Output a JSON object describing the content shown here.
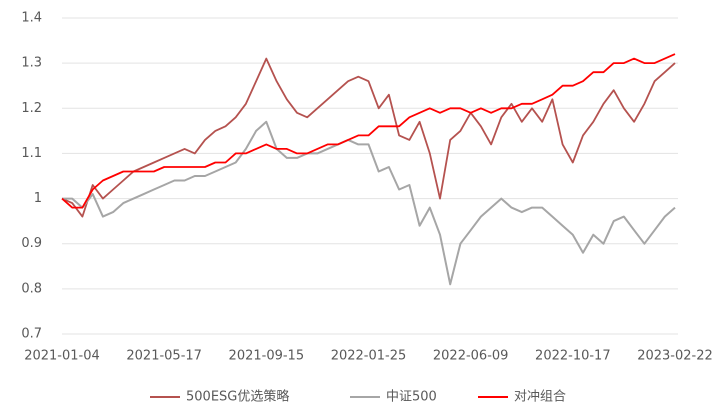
{
  "chart_data": {
    "type": "line",
    "categories": [
      "2021-01-04",
      null,
      null,
      null,
      null,
      null,
      null,
      null,
      null,
      null,
      "2021-05-17",
      null,
      null,
      null,
      null,
      null,
      null,
      null,
      null,
      null,
      "2021-09-15",
      null,
      null,
      null,
      null,
      null,
      null,
      null,
      null,
      null,
      "2022-01-25",
      null,
      null,
      null,
      null,
      null,
      null,
      null,
      null,
      null,
      "2022-06-09",
      null,
      null,
      null,
      null,
      null,
      null,
      null,
      null,
      null,
      "2022-10-17",
      null,
      null,
      null,
      null,
      null,
      null,
      null,
      null,
      null,
      "2023-02-22"
    ],
    "series": [
      {
        "name": "500ESG优选策略",
        "color": "#b5524f",
        "values": [
          1.0,
          0.99,
          0.96,
          1.03,
          1.0,
          1.02,
          1.04,
          1.06,
          1.07,
          1.08,
          1.09,
          1.1,
          1.11,
          1.1,
          1.13,
          1.15,
          1.16,
          1.18,
          1.21,
          1.26,
          1.31,
          1.26,
          1.22,
          1.19,
          1.18,
          1.2,
          1.22,
          1.24,
          1.26,
          1.27,
          1.26,
          1.2,
          1.23,
          1.14,
          1.13,
          1.17,
          1.1,
          1.0,
          1.13,
          1.15,
          1.19,
          1.16,
          1.12,
          1.18,
          1.21,
          1.17,
          1.2,
          1.17,
          1.22,
          1.12,
          1.08,
          1.14,
          1.17,
          1.21,
          1.24,
          1.2,
          1.17,
          1.21,
          1.26,
          1.28,
          1.3
        ]
      },
      {
        "name": "中证500",
        "color": "#a6a6a6",
        "values": [
          1.0,
          1.0,
          0.98,
          1.01,
          0.96,
          0.97,
          0.99,
          1.0,
          1.01,
          1.02,
          1.03,
          1.04,
          1.04,
          1.05,
          1.05,
          1.06,
          1.07,
          1.08,
          1.11,
          1.15,
          1.17,
          1.11,
          1.09,
          1.09,
          1.1,
          1.1,
          1.11,
          1.12,
          1.13,
          1.12,
          1.12,
          1.06,
          1.07,
          1.02,
          1.03,
          0.94,
          0.98,
          0.92,
          0.81,
          0.9,
          0.93,
          0.96,
          0.98,
          1.0,
          0.98,
          0.97,
          0.98,
          0.98,
          0.96,
          0.94,
          0.92,
          0.88,
          0.92,
          0.9,
          0.95,
          0.96,
          0.93,
          0.9,
          0.93,
          0.96,
          0.98
        ]
      },
      {
        "name": "对冲组合",
        "color": "#ff0000",
        "values": [
          1.0,
          0.98,
          0.98,
          1.02,
          1.04,
          1.05,
          1.06,
          1.06,
          1.06,
          1.06,
          1.07,
          1.07,
          1.07,
          1.07,
          1.07,
          1.08,
          1.08,
          1.1,
          1.1,
          1.11,
          1.12,
          1.11,
          1.11,
          1.1,
          1.1,
          1.11,
          1.12,
          1.12,
          1.13,
          1.14,
          1.14,
          1.16,
          1.16,
          1.16,
          1.18,
          1.19,
          1.2,
          1.19,
          1.2,
          1.2,
          1.19,
          1.2,
          1.19,
          1.2,
          1.2,
          1.21,
          1.21,
          1.22,
          1.23,
          1.25,
          1.25,
          1.26,
          1.28,
          1.28,
          1.3,
          1.3,
          1.31,
          1.3,
          1.3,
          1.31,
          1.32
        ]
      }
    ],
    "ylim": [
      0.7,
      1.4
    ],
    "yticks": [
      0.7,
      0.8,
      0.9,
      1,
      1.1,
      1.2,
      1.3,
      1.4
    ],
    "grid": true,
    "legend": "bottom"
  }
}
